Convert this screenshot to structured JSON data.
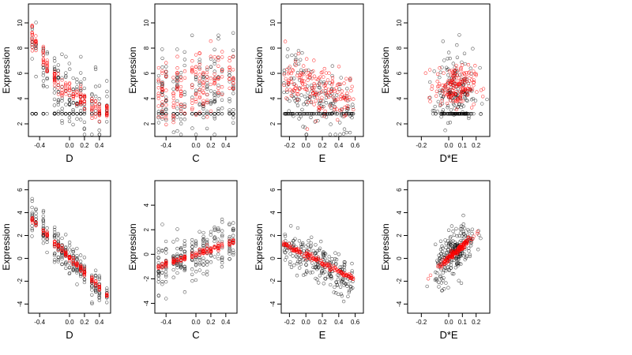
{
  "chart_data": [
    {
      "type": "scatter",
      "xlabel": "D",
      "ylabel": "Expression",
      "xlim": [
        -0.55,
        0.55
      ],
      "ylim": [
        1.0,
        11.5
      ],
      "xticks": [
        "-0.4",
        "0.0",
        "0.2",
        "0.4"
      ],
      "xtick_values": [
        -0.4,
        0.0,
        0.2,
        0.4
      ],
      "yticks": [
        "2",
        "4",
        "6",
        "8",
        "10"
      ],
      "ytick_values": [
        2,
        4,
        6,
        8,
        10
      ],
      "x_levels": [
        -0.5,
        -0.45,
        -0.35,
        -0.3,
        -0.2,
        -0.15,
        -0.1,
        -0.05,
        0.0,
        0.05,
        0.1,
        0.15,
        0.2,
        0.3,
        0.35,
        0.4,
        0.5
      ],
      "observed_color": "#000000",
      "fitted_color": "#ff0000",
      "observed_trend": [
        [
          -0.5,
          9.2
        ],
        [
          -0.35,
          6.5
        ],
        [
          -0.2,
          5.0
        ],
        [
          0.0,
          4.3
        ],
        [
          0.2,
          3.5
        ],
        [
          0.4,
          3.0
        ],
        [
          0.5,
          2.8
        ]
      ],
      "observed_spread": 2.2,
      "observed_floor": 2.8,
      "fitted_trend": [
        [
          -0.5,
          9.0
        ],
        [
          -0.4,
          8.0
        ],
        [
          -0.3,
          6.6
        ],
        [
          -0.2,
          5.5
        ],
        [
          -0.1,
          5.0
        ],
        [
          0.0,
          4.6
        ],
        [
          0.1,
          4.2
        ],
        [
          0.2,
          3.8
        ],
        [
          0.3,
          3.4
        ],
        [
          0.4,
          3.1
        ],
        [
          0.5,
          2.9
        ]
      ],
      "fitted_spread": 0.9
    },
    {
      "type": "scatter",
      "xlabel": "C",
      "ylabel": "Expression",
      "xlim": [
        -0.55,
        0.55
      ],
      "ylim": [
        1.0,
        11.5
      ],
      "xticks": [
        "-0.4",
        "0.0",
        "0.2",
        "0.4"
      ],
      "xtick_values": [
        -0.4,
        0.0,
        0.2,
        0.4
      ],
      "yticks": [
        "2",
        "4",
        "6",
        "8",
        "10"
      ],
      "ytick_values": [
        2,
        4,
        6,
        8,
        10
      ],
      "x_levels": [
        -0.5,
        -0.45,
        -0.4,
        -0.3,
        -0.25,
        -0.2,
        -0.15,
        -0.05,
        0.0,
        0.05,
        0.1,
        0.15,
        0.2,
        0.25,
        0.3,
        0.35,
        0.45,
        0.5
      ],
      "observed_color": "#000000",
      "fitted_color": "#ff0000",
      "observed_trend": [
        [
          -0.5,
          4.0
        ],
        [
          0.0,
          4.5
        ],
        [
          0.5,
          5.0
        ]
      ],
      "observed_spread": 3.0,
      "observed_floor": 2.8,
      "fitted_trend": [
        [
          -0.5,
          4.1
        ],
        [
          -0.25,
          4.7
        ],
        [
          0.0,
          5.2
        ],
        [
          0.25,
          5.6
        ],
        [
          0.5,
          6.0
        ]
      ],
      "fitted_spread": 2.6
    },
    {
      "type": "scatter",
      "xlabel": "E",
      "ylabel": "Expression",
      "xlim": [
        -0.3,
        0.7
      ],
      "ylim": [
        1.0,
        11.5
      ],
      "xticks": [
        "-0.2",
        "0.0",
        "0.2",
        "0.4",
        "0.6"
      ],
      "xtick_values": [
        -0.2,
        0.0,
        0.2,
        0.4,
        0.6
      ],
      "yticks": [
        "2",
        "4",
        "6",
        "8",
        "10"
      ],
      "ytick_values": [
        2,
        4,
        6,
        8,
        10
      ],
      "observed_color": "#000000",
      "fitted_color": "#ff0000",
      "observed_trend": [
        [
          -0.25,
          5.5
        ],
        [
          -0.1,
          5.0
        ],
        [
          0.0,
          4.6
        ],
        [
          0.2,
          4.0
        ],
        [
          0.4,
          3.6
        ],
        [
          0.6,
          3.2
        ]
      ],
      "observed_spread": 2.4,
      "observed_floor": 2.8,
      "fitted_trend": [
        [
          -0.25,
          5.6
        ],
        [
          0.0,
          5.0
        ],
        [
          0.2,
          4.6
        ],
        [
          0.4,
          4.3
        ],
        [
          0.6,
          4.0
        ]
      ],
      "fitted_spread": 1.8
    },
    {
      "type": "scatter",
      "xlabel": "D*E",
      "ylabel": "Expression",
      "xlim": [
        -0.3,
        0.3
      ],
      "ylim": [
        1.0,
        11.5
      ],
      "xticks": [
        "-0.2",
        "0.0",
        "0.1",
        "0.2"
      ],
      "xtick_values": [
        -0.2,
        0.0,
        0.1,
        0.2
      ],
      "yticks": [
        "2",
        "4",
        "6",
        "8",
        "10"
      ],
      "ytick_values": [
        2,
        4,
        6,
        8,
        10
      ],
      "observed_color": "#000000",
      "fitted_color": "#ff0000",
      "observed_trend": [
        [
          -0.25,
          4.8
        ],
        [
          0.0,
          4.8
        ],
        [
          0.25,
          4.8
        ]
      ],
      "observed_spread": 2.6,
      "observed_floor": 2.8,
      "fitted_trend": [
        [
          -0.25,
          5.0
        ],
        [
          0.0,
          5.0
        ],
        [
          0.25,
          5.0
        ]
      ],
      "fitted_spread": 1.6
    },
    {
      "type": "scatter",
      "xlabel": "D",
      "ylabel": "Expression",
      "xlim": [
        -0.55,
        0.55
      ],
      "ylim": [
        -4.8,
        6.8
      ],
      "xticks": [
        "-0.4",
        "0.0",
        "0.2",
        "0.4"
      ],
      "xtick_values": [
        -0.4,
        0.0,
        0.2,
        0.4
      ],
      "yticks": [
        "-4",
        "-2",
        "0",
        "2",
        "4",
        "6"
      ],
      "ytick_values": [
        -4,
        -2,
        0,
        2,
        4,
        6
      ],
      "x_levels": [
        -0.5,
        -0.45,
        -0.35,
        -0.3,
        -0.2,
        -0.15,
        -0.1,
        -0.05,
        0.0,
        0.05,
        0.1,
        0.15,
        0.2,
        0.3,
        0.35,
        0.4,
        0.5
      ],
      "observed_color": "#000000",
      "fitted_color": "#ff0000",
      "observed_trend": [
        [
          -0.5,
          3.6
        ],
        [
          0.5,
          -3.4
        ]
      ],
      "observed_spread": 1.4,
      "fitted_trend": [
        [
          -0.5,
          3.4
        ],
        [
          0.5,
          -3.2
        ]
      ],
      "fitted_spread": 0.3
    },
    {
      "type": "scatter",
      "xlabel": "C",
      "ylabel": "Expression",
      "xlim": [
        -0.55,
        0.55
      ],
      "ylim": [
        -4.8,
        6.0
      ],
      "xticks": [
        "-0.4",
        "0.0",
        "0.2",
        "0.4"
      ],
      "xtick_values": [
        -0.4,
        0.0,
        0.2,
        0.4
      ],
      "yticks": [
        "-4",
        "-2",
        "0",
        "2",
        "4"
      ],
      "ytick_values": [
        -4,
        -2,
        0,
        2,
        4
      ],
      "x_levels": [
        -0.5,
        -0.45,
        -0.4,
        -0.3,
        -0.25,
        -0.2,
        -0.15,
        -0.05,
        0.0,
        0.05,
        0.1,
        0.15,
        0.2,
        0.25,
        0.3,
        0.35,
        0.45,
        0.5
      ],
      "observed_color": "#000000",
      "fitted_color": "#ff0000",
      "observed_trend": [
        [
          -0.5,
          -1.0
        ],
        [
          0.5,
          1.0
        ]
      ],
      "observed_spread": 1.7,
      "fitted_trend": [
        [
          -0.5,
          -1.0
        ],
        [
          0.5,
          1.0
        ]
      ],
      "fitted_spread": 0.25
    },
    {
      "type": "scatter",
      "xlabel": "E",
      "ylabel": "Expression",
      "xlim": [
        -0.3,
        0.7
      ],
      "ylim": [
        -4.8,
        6.8
      ],
      "xticks": [
        "-0.2",
        "0.0",
        "0.2",
        "0.4",
        "0.6"
      ],
      "xtick_values": [
        -0.2,
        0.0,
        0.2,
        0.4,
        0.6
      ],
      "yticks": [
        "-4",
        "-2",
        "0",
        "2",
        "4",
        "6"
      ],
      "ytick_values": [
        -4,
        -2,
        0,
        2,
        4,
        6
      ],
      "observed_color": "#000000",
      "fitted_color": "#ff0000",
      "observed_trend": [
        [
          -0.25,
          1.0
        ],
        [
          0.0,
          0.0
        ],
        [
          0.3,
          -1.0
        ],
        [
          0.6,
          -2.2
        ]
      ],
      "observed_spread": 1.6,
      "fitted_trend": [
        [
          -0.25,
          1.2
        ],
        [
          0.65,
          -2.0
        ]
      ],
      "fitted_spread": 0.25
    },
    {
      "type": "scatter",
      "xlabel": "D*E",
      "ylabel": "Expression",
      "xlim": [
        -0.3,
        0.3
      ],
      "ylim": [
        -4.8,
        6.8
      ],
      "xticks": [
        "-0.2",
        "0.0",
        "0.1",
        "0.2"
      ],
      "xtick_values": [
        -0.2,
        0.0,
        0.1,
        0.2
      ],
      "yticks": [
        "-4",
        "-2",
        "0",
        "2",
        "4",
        "6"
      ],
      "ytick_values": [
        -4,
        -2,
        0,
        2,
        4,
        6
      ],
      "observed_color": "#000000",
      "fitted_color": "#ff0000",
      "observed_trend": [
        [
          -0.25,
          -2.5
        ],
        [
          0.0,
          0.0
        ],
        [
          0.25,
          2.5
        ]
      ],
      "observed_spread": 1.8,
      "fitted_trend": [
        [
          -0.25,
          -2.7
        ],
        [
          0.0,
          0.0
        ],
        [
          0.25,
          2.7
        ]
      ],
      "fitted_spread": 0.3
    }
  ]
}
